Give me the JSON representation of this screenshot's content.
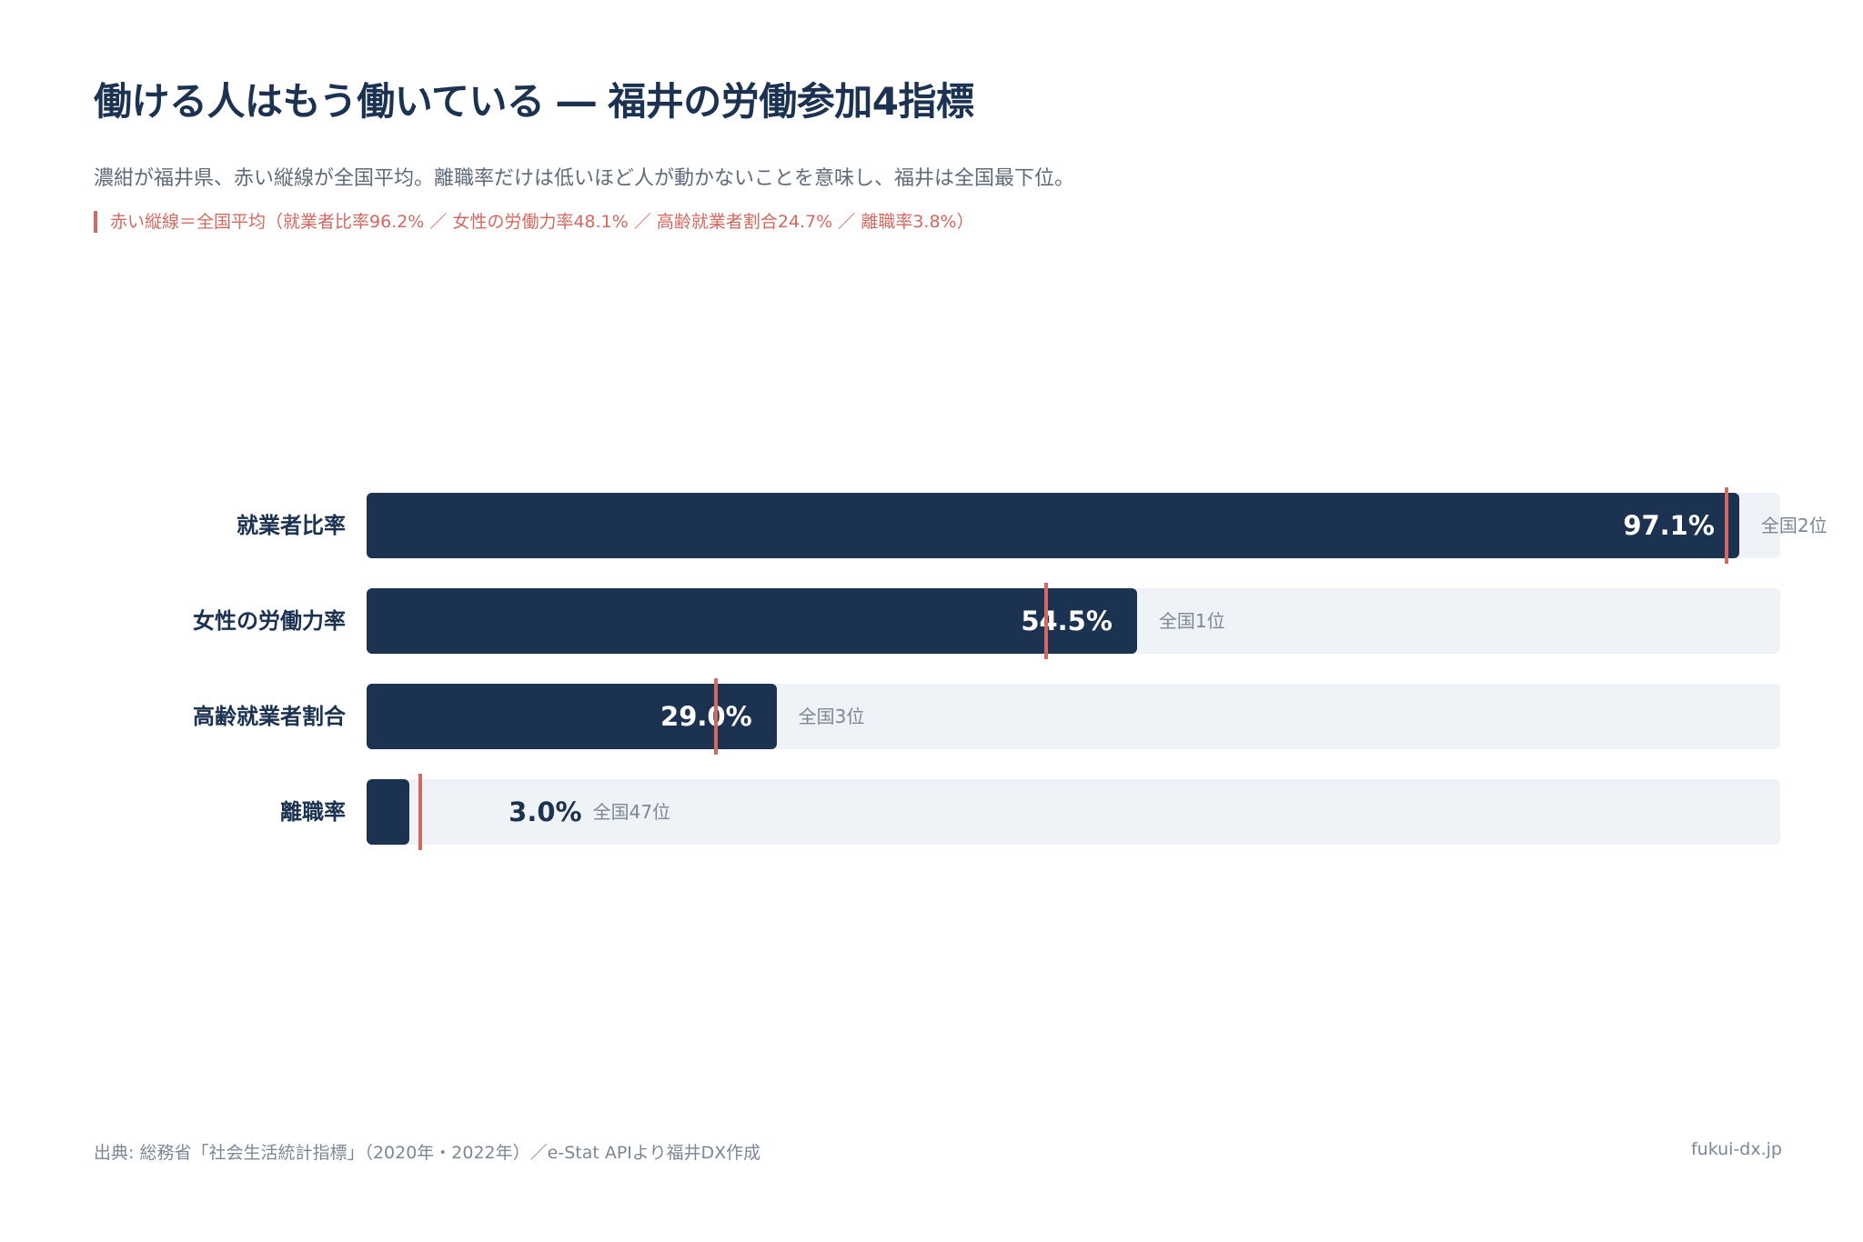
{
  "header": {
    "title": "働ける人はもう働いている ― 福井の労働参加4指標",
    "subtitle": "濃紺が福井県、赤い縦線が全国平均。離職率だけは低いほど人が動かないことを意味し、福井は全国最下位。",
    "average_note": "赤い縦線＝全国平均（就業者比率96.2% ／ 女性の労働力率48.1% ／ 高齢就業者割合24.7% ／ 離職率3.8%）"
  },
  "chart_data": {
    "type": "bar",
    "orientation": "horizontal",
    "categories": [
      "就業者比率",
      "女性の労働力率",
      "高齢就業者割合",
      "離職率"
    ],
    "series": [
      {
        "name": "福井県",
        "values": [
          97.1,
          54.5,
          29.0,
          3.0
        ],
        "color": "#1b3250"
      },
      {
        "name": "全国平均",
        "values": [
          96.2,
          48.1,
          24.7,
          3.8
        ],
        "color": "#d0695f",
        "style": "vertical-marker"
      }
    ],
    "value_labels": [
      "97.1%",
      "54.5%",
      "29.0%",
      "3.0%"
    ],
    "rank_labels": [
      "全国2位",
      "全国1位",
      "全国3位",
      "全国47位"
    ],
    "xlim": [
      0,
      100
    ],
    "grid": false,
    "track_color": "#eff3f8"
  },
  "footer": {
    "source": "出典: 総務省「社会生活統計指標」（2020年・2022年）／e-Stat APIより福井DX作成",
    "site": "fukui-dx.jp"
  }
}
